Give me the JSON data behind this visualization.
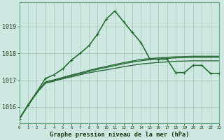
{
  "title": "Graphe pression niveau de la mer (hPa)",
  "background_color": "#cce8e0",
  "plot_bg_color": "#cce8e0",
  "grid_color": "#aaccbe",
  "line_color": "#2d6b3c",
  "border_color": "#6aaa88",
  "xlim": [
    0,
    23
  ],
  "ylim": [
    1015.4,
    1019.9
  ],
  "yticks": [
    1016,
    1017,
    1018,
    1019
  ],
  "xticks": [
    0,
    1,
    2,
    3,
    4,
    5,
    6,
    7,
    8,
    9,
    10,
    11,
    12,
    13,
    14,
    15,
    16,
    17,
    18,
    19,
    20,
    21,
    22,
    23
  ],
  "series_smooth": [
    {
      "x": [
        0,
        1,
        2,
        3,
        4,
        5,
        6,
        7,
        8,
        9,
        10,
        11,
        12,
        13,
        14,
        15,
        16,
        17,
        18,
        19,
        20,
        21,
        22,
        23
      ],
      "y": [
        1015.55,
        1016.05,
        1016.52,
        1016.88,
        1016.96,
        1017.05,
        1017.12,
        1017.2,
        1017.27,
        1017.33,
        1017.38,
        1017.44,
        1017.5,
        1017.55,
        1017.6,
        1017.63,
        1017.66,
        1017.68,
        1017.7,
        1017.71,
        1017.72,
        1017.72,
        1017.72,
        1017.72
      ],
      "linewidth": 1.0
    },
    {
      "x": [
        0,
        1,
        2,
        3,
        4,
        5,
        6,
        7,
        8,
        9,
        10,
        11,
        12,
        13,
        14,
        15,
        16,
        17,
        18,
        19,
        20,
        21,
        22,
        23
      ],
      "y": [
        1015.55,
        1016.05,
        1016.52,
        1016.9,
        1016.98,
        1017.08,
        1017.16,
        1017.24,
        1017.32,
        1017.4,
        1017.47,
        1017.54,
        1017.61,
        1017.67,
        1017.72,
        1017.76,
        1017.79,
        1017.81,
        1017.83,
        1017.84,
        1017.85,
        1017.85,
        1017.85,
        1017.85
      ],
      "linewidth": 1.0
    },
    {
      "x": [
        0,
        1,
        2,
        3,
        4,
        5,
        6,
        7,
        8,
        9,
        10,
        11,
        12,
        13,
        14,
        15,
        16,
        17,
        18,
        19,
        20,
        21,
        22,
        23
      ],
      "y": [
        1015.55,
        1016.05,
        1016.52,
        1016.93,
        1017.01,
        1017.1,
        1017.19,
        1017.27,
        1017.36,
        1017.44,
        1017.51,
        1017.58,
        1017.65,
        1017.71,
        1017.77,
        1017.8,
        1017.83,
        1017.85,
        1017.87,
        1017.88,
        1017.89,
        1017.89,
        1017.89,
        1017.89
      ],
      "linewidth": 1.0
    }
  ],
  "series_main": {
    "x": [
      0,
      1,
      2,
      3,
      4,
      5,
      6,
      7,
      8,
      9,
      10,
      11,
      12,
      13,
      14,
      15,
      16,
      17,
      18,
      19,
      20,
      21,
      22,
      23
    ],
    "y": [
      1015.55,
      1016.08,
      1016.55,
      1017.06,
      1017.2,
      1017.42,
      1017.75,
      1018.0,
      1018.28,
      1018.72,
      1019.28,
      1019.58,
      1019.18,
      1018.78,
      1018.4,
      1017.8,
      1017.78,
      1017.78,
      1017.28,
      1017.28,
      1017.55,
      1017.55,
      1017.25,
      1017.25
    ],
    "linewidth": 1.2,
    "markersize": 2.8
  }
}
